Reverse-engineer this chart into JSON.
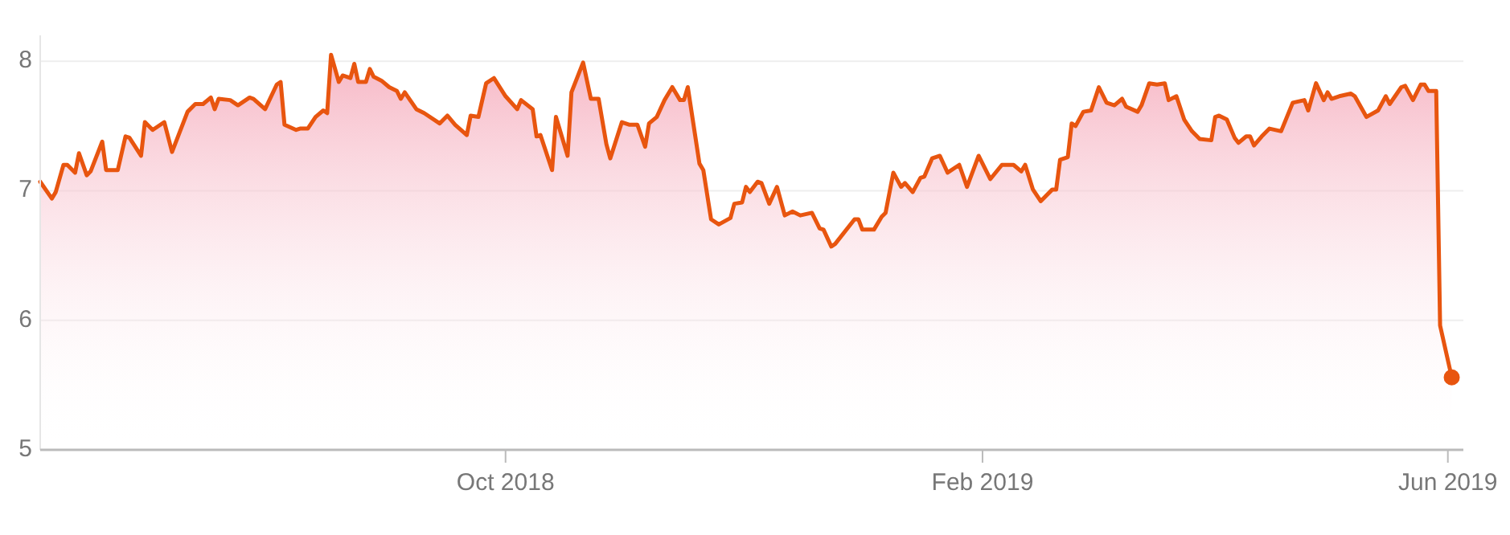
{
  "chart_data": {
    "type": "area",
    "xlim": [
      "2018-06-03",
      "2019-06-05"
    ],
    "ylim": [
      5,
      8.2
    ],
    "yticks": [
      5,
      6,
      7,
      8
    ],
    "xticks": [
      {
        "value": "2018-10-01",
        "label": "Oct 2018"
      },
      {
        "value": "2019-02-01",
        "label": "Feb 2019"
      },
      {
        "value": "2019-06-01",
        "label": "Jun 2019"
      }
    ],
    "grid": "y",
    "marker": "none",
    "line_style": "solid",
    "series": [
      {
        "color": "#e8550f",
        "x": [
          "2018-06-03",
          "2018-06-06",
          "2018-06-07",
          "2018-06-09",
          "2018-06-10",
          "2018-06-12",
          "2018-06-13",
          "2018-06-15",
          "2018-06-16",
          "2018-06-19",
          "2018-06-20",
          "2018-06-23",
          "2018-06-25",
          "2018-06-26",
          "2018-06-29",
          "2018-06-30",
          "2018-07-02",
          "2018-07-05",
          "2018-07-07",
          "2018-07-11",
          "2018-07-13",
          "2018-07-15",
          "2018-07-17",
          "2018-07-18",
          "2018-07-19",
          "2018-07-22",
          "2018-07-24",
          "2018-07-27",
          "2018-07-28",
          "2018-07-31",
          "2018-08-03",
          "2018-08-04",
          "2018-08-05",
          "2018-08-08",
          "2018-08-09",
          "2018-08-11",
          "2018-08-13",
          "2018-08-15",
          "2018-08-16",
          "2018-08-17",
          "2018-08-19",
          "2018-08-20",
          "2018-08-22",
          "2018-08-23",
          "2018-08-24",
          "2018-08-26",
          "2018-08-27",
          "2018-08-28",
          "2018-08-30",
          "2018-09-01",
          "2018-09-03",
          "2018-09-04",
          "2018-09-05",
          "2018-09-08",
          "2018-09-10",
          "2018-09-14",
          "2018-09-16",
          "2018-09-18",
          "2018-09-21",
          "2018-09-22",
          "2018-09-24",
          "2018-09-26",
          "2018-09-28",
          "2018-10-01",
          "2018-10-04",
          "2018-10-05",
          "2018-10-08",
          "2018-10-09",
          "2018-10-10",
          "2018-10-13",
          "2018-10-14",
          "2018-10-17",
          "2018-10-18",
          "2018-10-21",
          "2018-10-23",
          "2018-10-25",
          "2018-10-27",
          "2018-10-28",
          "2018-10-31",
          "2018-11-02",
          "2018-11-04",
          "2018-11-06",
          "2018-11-07",
          "2018-11-09",
          "2018-11-11",
          "2018-11-13",
          "2018-11-15",
          "2018-11-16",
          "2018-11-17",
          "2018-11-20",
          "2018-11-21",
          "2018-11-23",
          "2018-11-25",
          "2018-11-28",
          "2018-11-29",
          "2018-12-01",
          "2018-12-02",
          "2018-12-03",
          "2018-12-05",
          "2018-12-06",
          "2018-12-08",
          "2018-12-10",
          "2018-12-12",
          "2018-12-14",
          "2018-12-16",
          "2018-12-19",
          "2018-12-21",
          "2018-12-22",
          "2018-12-24",
          "2018-12-25",
          "2018-12-30",
          "2018-12-31",
          "2019-01-01",
          "2019-01-04",
          "2019-01-06",
          "2019-01-07",
          "2019-01-09",
          "2019-01-11",
          "2019-01-12",
          "2019-01-14",
          "2019-01-16",
          "2019-01-17",
          "2019-01-19",
          "2019-01-21",
          "2019-01-23",
          "2019-01-26",
          "2019-01-28",
          "2019-01-31",
          "2019-02-03",
          "2019-02-06",
          "2019-02-09",
          "2019-02-11",
          "2019-02-12",
          "2019-02-14",
          "2019-02-16",
          "2019-02-19",
          "2019-02-20",
          "2019-02-21",
          "2019-02-23",
          "2019-02-24",
          "2019-02-25",
          "2019-02-27",
          "2019-03-01",
          "2019-03-03",
          "2019-03-05",
          "2019-03-07",
          "2019-03-09",
          "2019-03-10",
          "2019-03-13",
          "2019-03-14",
          "2019-03-16",
          "2019-03-18",
          "2019-03-20",
          "2019-03-21",
          "2019-03-23",
          "2019-03-25",
          "2019-03-27",
          "2019-03-29",
          "2019-04-01",
          "2019-04-02",
          "2019-04-03",
          "2019-04-05",
          "2019-04-07",
          "2019-04-08",
          "2019-04-10",
          "2019-04-11",
          "2019-04-12",
          "2019-04-14",
          "2019-04-16",
          "2019-04-19",
          "2019-04-22",
          "2019-04-25",
          "2019-04-26",
          "2019-04-28",
          "2019-04-30",
          "2019-05-01",
          "2019-05-02",
          "2019-05-04",
          "2019-05-07",
          "2019-05-08",
          "2019-05-11",
          "2019-05-14",
          "2019-05-16",
          "2019-05-17",
          "2019-05-20",
          "2019-05-21",
          "2019-05-23",
          "2019-05-25",
          "2019-05-26",
          "2019-05-27",
          "2019-05-29",
          "2019-05-30",
          "2019-06-02"
        ],
        "values": [
          7.07,
          6.94,
          6.99,
          7.2,
          7.2,
          7.14,
          7.29,
          7.12,
          7.15,
          7.38,
          7.16,
          7.16,
          7.42,
          7.41,
          7.27,
          7.53,
          7.47,
          7.53,
          7.3,
          7.61,
          7.67,
          7.67,
          7.72,
          7.63,
          7.71,
          7.7,
          7.66,
          7.72,
          7.71,
          7.63,
          7.82,
          7.84,
          7.51,
          7.47,
          7.48,
          7.48,
          7.57,
          7.62,
          7.6,
          8.05,
          7.84,
          7.89,
          7.87,
          7.98,
          7.84,
          7.84,
          7.94,
          7.88,
          7.85,
          7.8,
          7.77,
          7.71,
          7.76,
          7.63,
          7.6,
          7.52,
          7.58,
          7.51,
          7.43,
          7.58,
          7.57,
          7.83,
          7.87,
          7.73,
          7.63,
          7.7,
          7.63,
          7.42,
          7.43,
          7.16,
          7.57,
          7.27,
          7.76,
          7.99,
          7.71,
          7.71,
          7.36,
          7.25,
          7.53,
          7.51,
          7.51,
          7.34,
          7.52,
          7.57,
          7.7,
          7.8,
          7.7,
          7.7,
          7.8,
          7.21,
          7.16,
          6.78,
          6.74,
          6.79,
          6.9,
          6.91,
          7.03,
          6.99,
          7.07,
          7.06,
          6.9,
          7.03,
          6.81,
          6.84,
          6.81,
          6.83,
          6.71,
          6.7,
          6.57,
          6.59,
          6.78,
          6.78,
          6.7,
          6.7,
          6.8,
          6.83,
          7.14,
          7.03,
          7.06,
          6.99,
          7.1,
          7.11,
          7.25,
          7.27,
          7.14,
          7.2,
          7.03,
          7.27,
          7.09,
          7.2,
          7.2,
          7.15,
          7.2,
          7.01,
          6.92,
          7.01,
          7.01,
          7.24,
          7.26,
          7.52,
          7.5,
          7.61,
          7.62,
          7.8,
          7.68,
          7.66,
          7.71,
          7.65,
          7.61,
          7.66,
          7.83,
          7.82,
          7.83,
          7.7,
          7.73,
          7.55,
          7.46,
          7.4,
          7.39,
          7.57,
          7.58,
          7.55,
          7.41,
          7.37,
          7.42,
          7.42,
          7.35,
          7.42,
          7.48,
          7.46,
          7.68,
          7.7,
          7.62,
          7.83,
          7.7,
          7.76,
          7.71,
          7.73,
          7.75,
          7.73,
          7.57,
          7.62,
          7.73,
          7.67,
          7.8,
          7.81,
          7.7,
          7.82,
          7.82,
          7.77,
          7.77,
          5.96,
          5.56
        ]
      }
    ]
  }
}
